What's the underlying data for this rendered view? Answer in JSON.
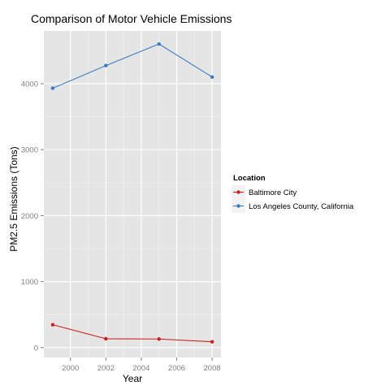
{
  "chart_data": {
    "type": "line",
    "title": "Comparison of Motor Vehicle Emissions",
    "xlabel": "Year",
    "ylabel": "PM2.5 Emissions (Tons)",
    "x": [
      1999,
      2002,
      2005,
      2008
    ],
    "xlim": [
      1998.5,
      2008.5
    ],
    "ylim": [
      -150,
      4800
    ],
    "xticks": [
      2000,
      2002,
      2004,
      2006,
      2008
    ],
    "yticks": [
      0,
      1000,
      2000,
      3000,
      4000
    ],
    "grid": true,
    "legend": {
      "title": "Location",
      "placement": "right"
    },
    "series": [
      {
        "name": "Baltimore City",
        "color": "#cc1f1f",
        "values": [
          347,
          134,
          130,
          88
        ]
      },
      {
        "name": "Los Angeles County, California",
        "color": "#3b7cc0",
        "values": [
          3931,
          4274,
          4601,
          4101
        ]
      }
    ]
  }
}
